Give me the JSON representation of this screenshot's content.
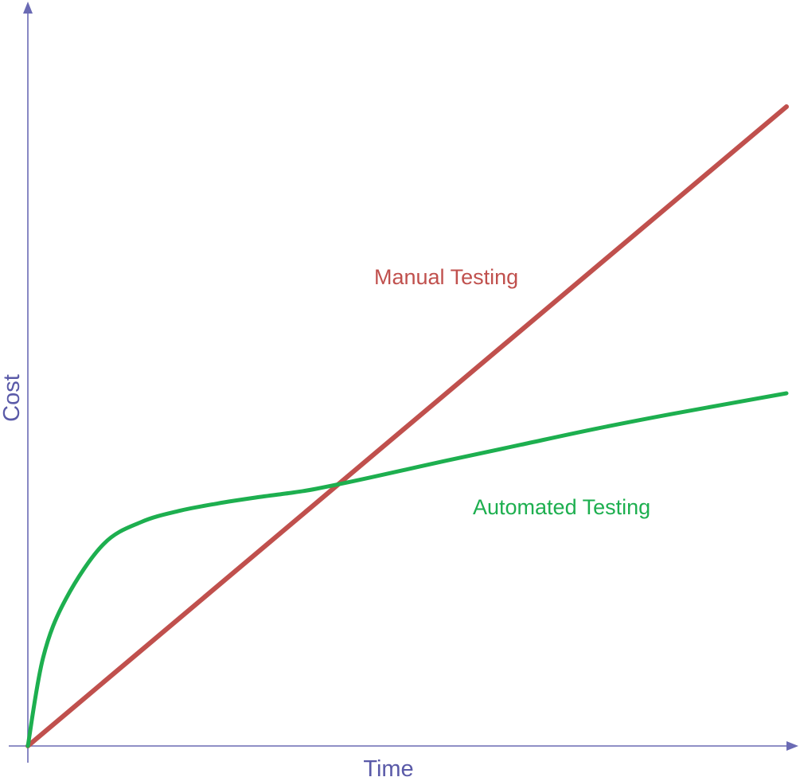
{
  "chart_data": {
    "type": "line",
    "title": "",
    "xlabel": "Time",
    "ylabel": "Cost",
    "xlim": [
      0,
      100
    ],
    "ylim": [
      0,
      100
    ],
    "grid": false,
    "legend": "inline labels",
    "axis_color": "#6a6ab4",
    "series": [
      {
        "name": "Manual Testing",
        "color": "#c0504d",
        "x": [
          0,
          100
        ],
        "y": [
          0,
          87
        ]
      },
      {
        "name": "Automated Testing",
        "color": "#1daf4f",
        "x": [
          0,
          2,
          5,
          10,
          15,
          20,
          25,
          30,
          35,
          38,
          45,
          55,
          65,
          75,
          85,
          100
        ],
        "y": [
          0,
          12,
          20,
          27.5,
          30.5,
          32,
          33,
          33.8,
          34.5,
          35,
          36.5,
          38.8,
          41,
          43.2,
          45.2,
          48
        ]
      }
    ]
  }
}
